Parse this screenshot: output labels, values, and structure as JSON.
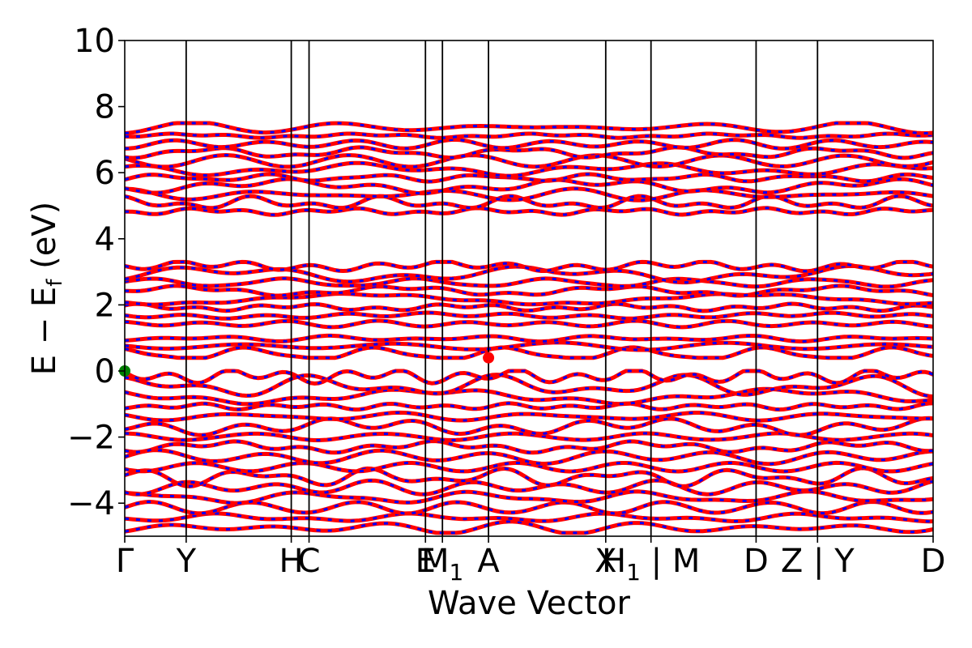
{
  "chart_data": {
    "type": "line",
    "title": "",
    "xlabel": "Wave Vector",
    "ylabel": "E − E",
    "ylabel_sub": "f",
    "ylabel_unit": " (eV)",
    "ylim": [
      -5,
      10
    ],
    "y_ticks": [
      -4,
      -2,
      0,
      2,
      4,
      6,
      8,
      10
    ],
    "y_tick_labels": [
      "−4",
      "−2",
      "0",
      "2",
      "4",
      "6",
      "8",
      "10"
    ],
    "x_range": [
      0,
      1
    ],
    "k_points": [
      {
        "pos": 0.0,
        "label": "Γ"
      },
      {
        "pos": 0.076,
        "label": "Y"
      },
      {
        "pos": 0.206,
        "label": "H"
      },
      {
        "pos": 0.228,
        "label": "C"
      },
      {
        "pos": 0.372,
        "label": "E"
      },
      {
        "pos": 0.393,
        "label": "M",
        "sub": "1"
      },
      {
        "pos": 0.45,
        "label": "A"
      },
      {
        "pos": 0.595,
        "label": "X"
      },
      {
        "pos": 0.651,
        "label": "H",
        "sub": "1",
        "suffix": " | M"
      },
      {
        "pos": 0.781,
        "label": "D"
      },
      {
        "pos": 0.857,
        "label": "Z | Y"
      },
      {
        "pos": 1.0,
        "label": "D"
      }
    ],
    "band_windows": [
      {
        "name": "conduction-upper",
        "emin": 4.7,
        "emax": 7.5
      },
      {
        "name": "conduction-middle",
        "emin": 1.3,
        "emax": 3.3
      },
      {
        "name": "conduction-lower",
        "emin": 0.4,
        "emax": 1.1
      },
      {
        "name": "valence",
        "emin": -4.9,
        "emax": 0.0
      }
    ],
    "series_colors": {
      "spin_up": "#ff0000",
      "spin_down": "#0000ff"
    },
    "vbm": {
      "x": 0.0,
      "y": 0.0,
      "color": "#008000"
    },
    "cbm": {
      "x": 0.45,
      "y": 0.4,
      "color": "#ff0000"
    },
    "grid": false,
    "legend": "none"
  }
}
